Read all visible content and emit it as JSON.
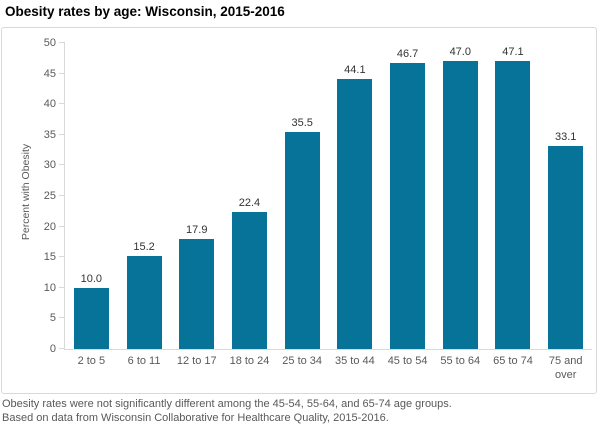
{
  "chart_data": {
    "type": "bar",
    "title": "Obesity rates by age: Wisconsin, 2015-2016",
    "categories": [
      "2 to 5",
      "6 to 11",
      "12 to 17",
      "18 to 24",
      "25 to 34",
      "35 to 44",
      "45 to 54",
      "55 to 64",
      "65 to 74",
      "75 and over"
    ],
    "values": [
      10.0,
      15.2,
      17.9,
      22.4,
      35.5,
      44.1,
      46.7,
      47.0,
      47.1,
      33.1
    ],
    "data_labels": [
      "10.0",
      "15.2",
      "17.9",
      "22.4",
      "35.5",
      "44.1",
      "46.7",
      "47.0",
      "47.1",
      "33.1"
    ],
    "xlabel": "",
    "ylabel": "Percent with Obesity",
    "ylim": [
      0,
      50
    ],
    "ytick_step": 5,
    "yticks": [
      0,
      5,
      10,
      15,
      20,
      25,
      30,
      35,
      40,
      45,
      50
    ],
    "grid": false,
    "legend": "none",
    "bar_color": "#077399"
  },
  "colors": {
    "bar": "#077399",
    "axis_line": "#d9d9d9",
    "border": "#d9d9d9",
    "tick_text": "#595959",
    "data_label_text": "#333333",
    "title_text": "#000000",
    "footnote_text": "#595959"
  },
  "footnotes": {
    "line1": "Obesity rates were not significantly different among the 45-54, 55-64, and 65-74 age groups.",
    "line2": "Based on data from Wisconsin Collaborative for Healthcare Quality, 2015-2016."
  }
}
